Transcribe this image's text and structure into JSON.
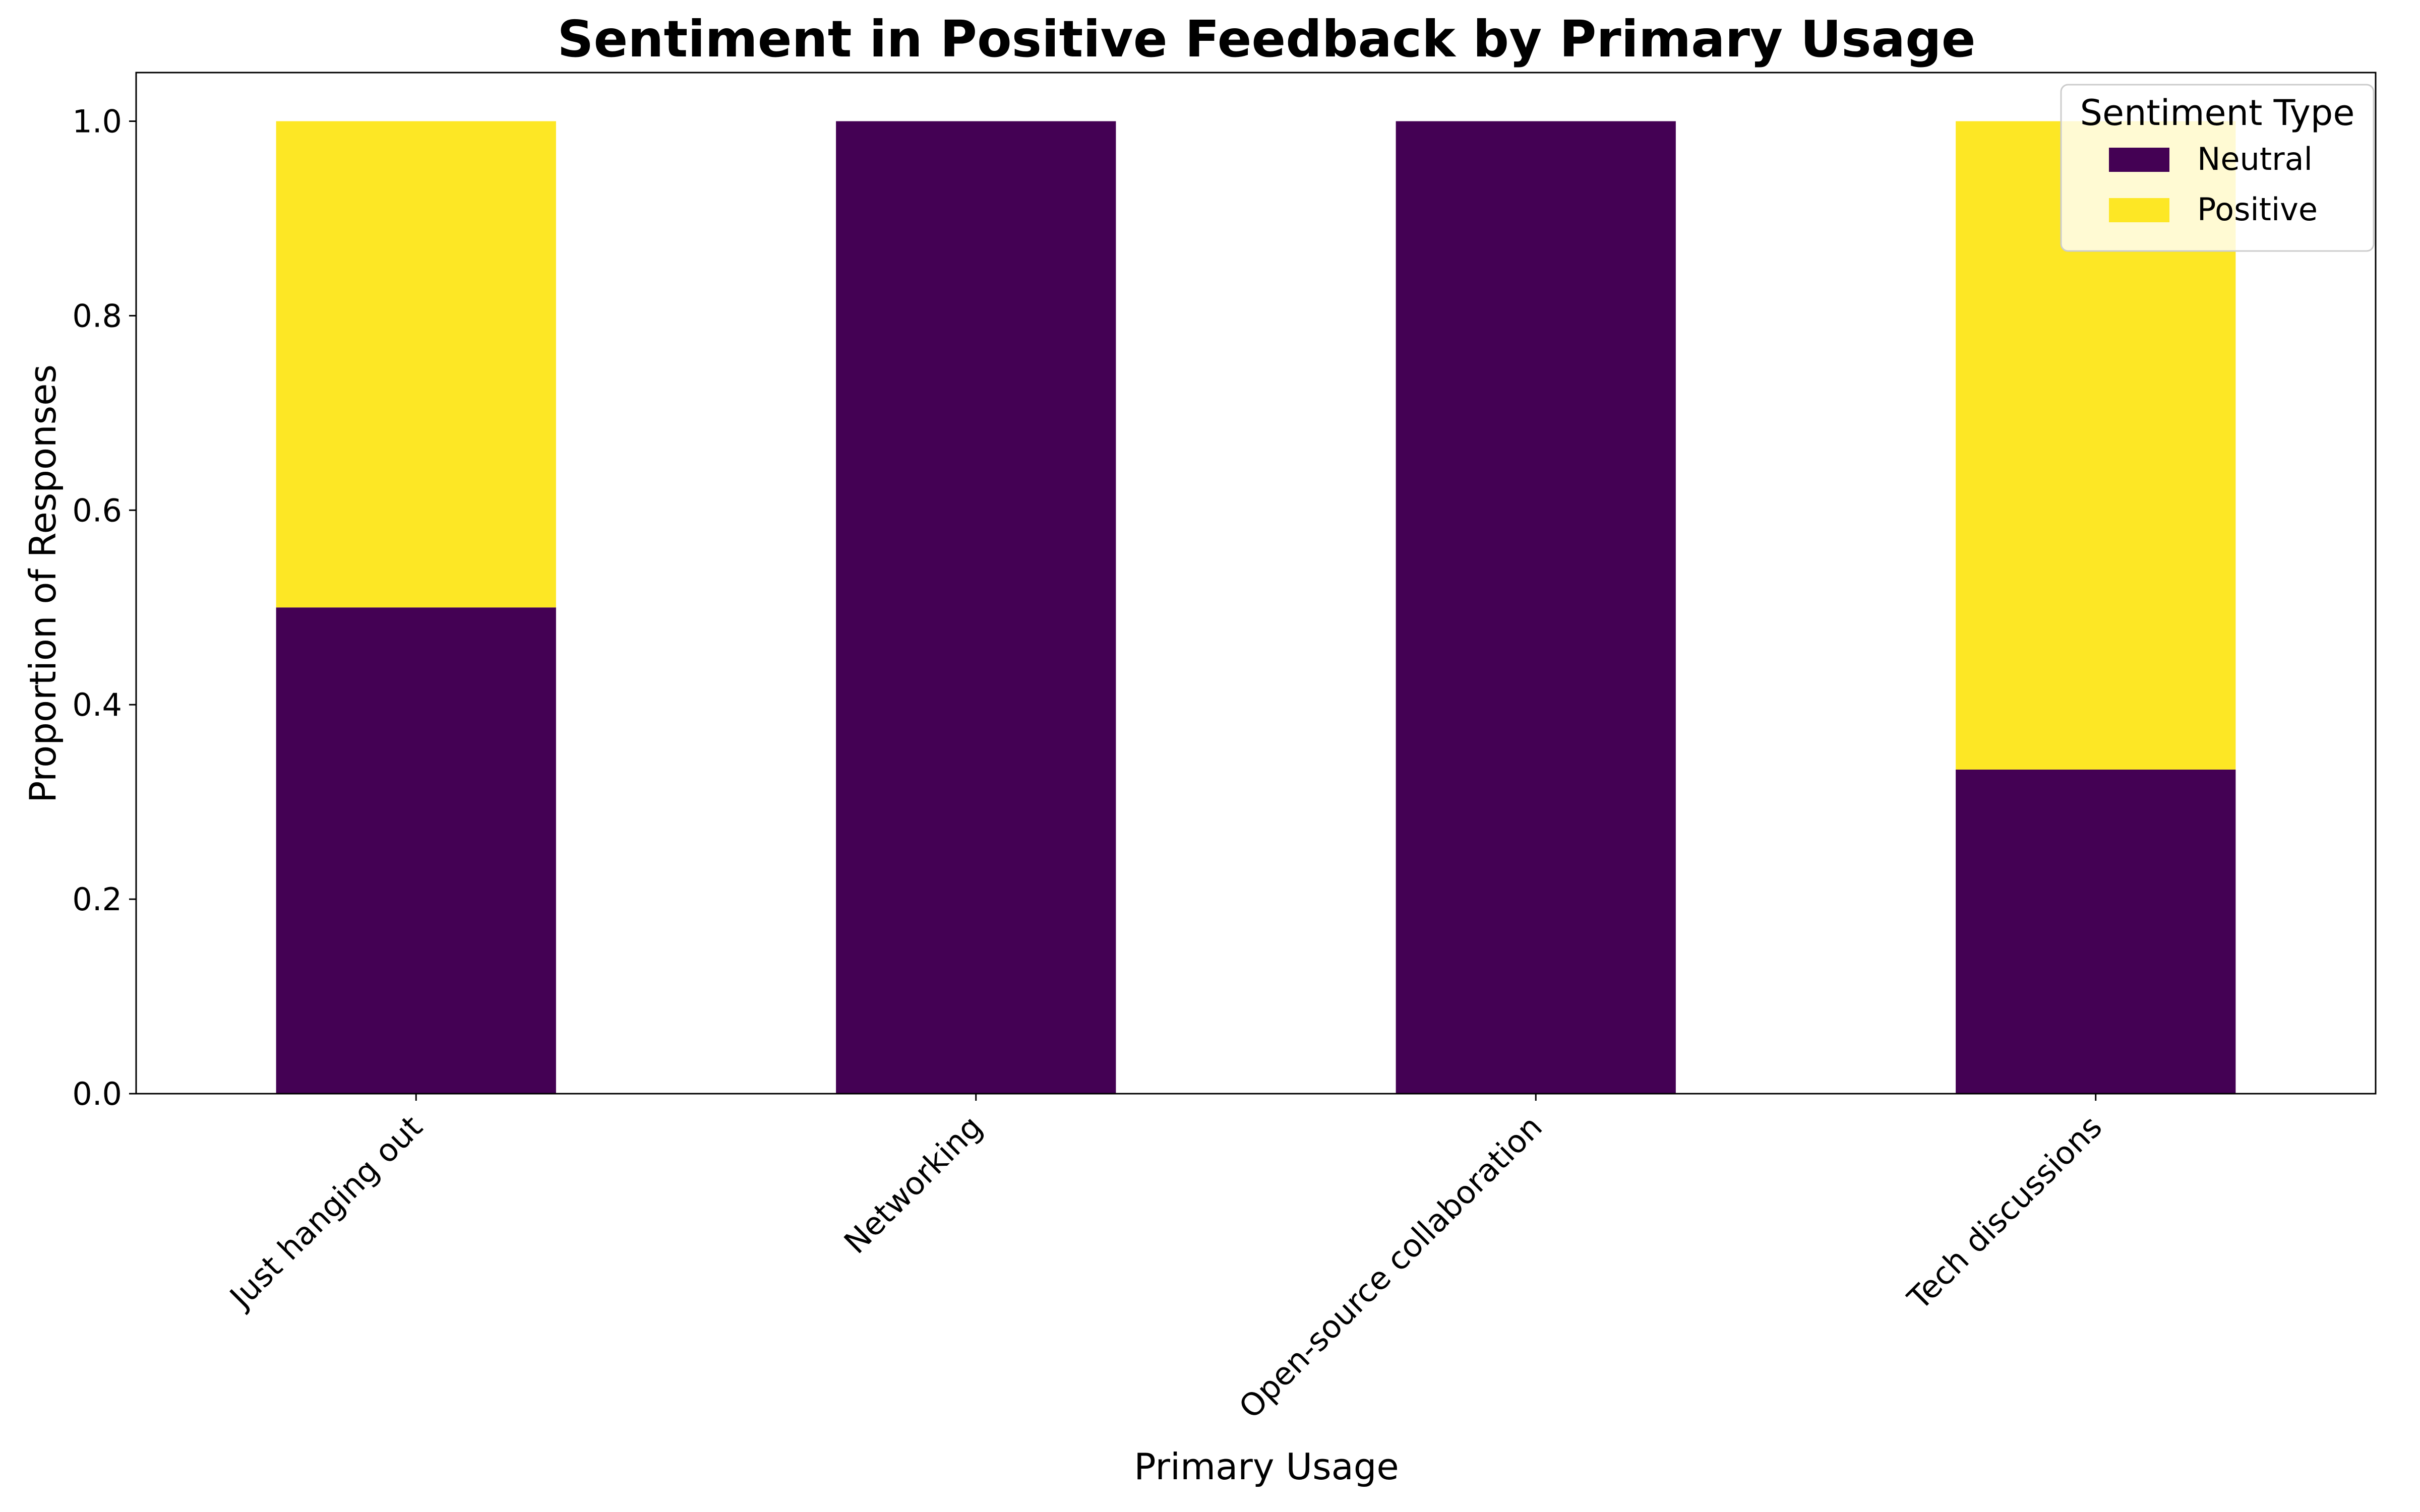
{
  "chart_data": {
    "type": "bar",
    "stacked": true,
    "title": "Sentiment in Positive Feedback by Primary Usage",
    "xlabel": "Primary Usage",
    "ylabel": "Proportion of Responses",
    "categories": [
      "Just hanging out",
      "Networking",
      "Open-source collaboration",
      "Tech discussions"
    ],
    "series": [
      {
        "name": "Neutral",
        "values": [
          0.5,
          1.0,
          1.0,
          0.3333
        ],
        "color": "#440154"
      },
      {
        "name": "Positive",
        "values": [
          0.5,
          0.0,
          0.0,
          0.6667
        ],
        "color": "#fde725"
      }
    ],
    "ylim": [
      0,
      1.05
    ],
    "yticks": [
      0.0,
      0.2,
      0.4,
      0.6,
      0.8,
      1.0
    ],
    "ytick_labels": [
      "0.0",
      "0.2",
      "0.4",
      "0.6",
      "0.8",
      "1.0"
    ],
    "legend": {
      "title": "Sentiment Type",
      "placement": "top-right"
    },
    "grid": false
  }
}
